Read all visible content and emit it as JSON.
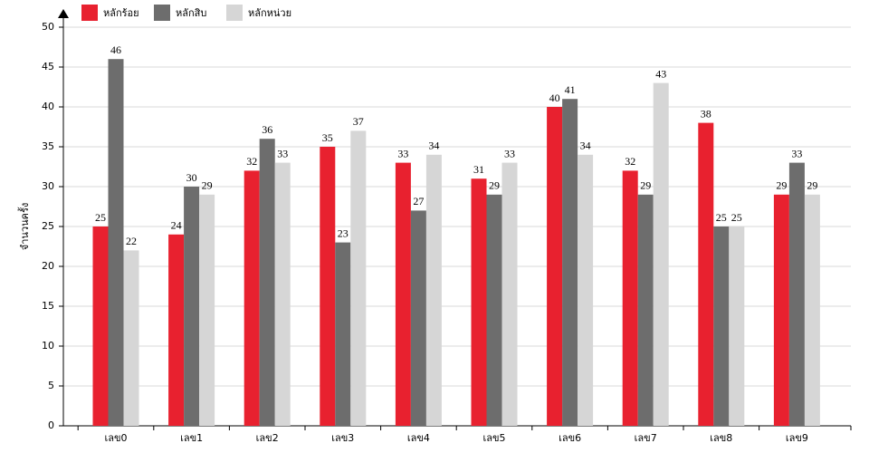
{
  "chart_data": {
    "type": "bar",
    "y_label": "จำนวนครั้ง",
    "categories": [
      "เลข0",
      "เลข1",
      "เลข2",
      "เลข3",
      "เลข4",
      "เลข5",
      "เลข6",
      "เลข7",
      "เลข8",
      "เลข9"
    ],
    "series": [
      {
        "name": "หลักร้อย",
        "color": "#e8212f",
        "values": [
          25,
          24,
          32,
          35,
          33,
          31,
          40,
          32,
          38,
          29
        ]
      },
      {
        "name": "หลักสิบ",
        "color": "#6d6d6d",
        "values": [
          46,
          30,
          36,
          23,
          27,
          29,
          41,
          29,
          25,
          33
        ]
      },
      {
        "name": "หลักหน่วย",
        "color": "#d6d6d6",
        "values": [
          22,
          29,
          33,
          37,
          34,
          33,
          34,
          43,
          25,
          29
        ]
      }
    ],
    "ylim": [
      0,
      50
    ],
    "yticks": [
      0,
      5,
      10,
      15,
      20,
      25,
      30,
      35,
      40,
      45,
      50
    ],
    "grid": true
  }
}
